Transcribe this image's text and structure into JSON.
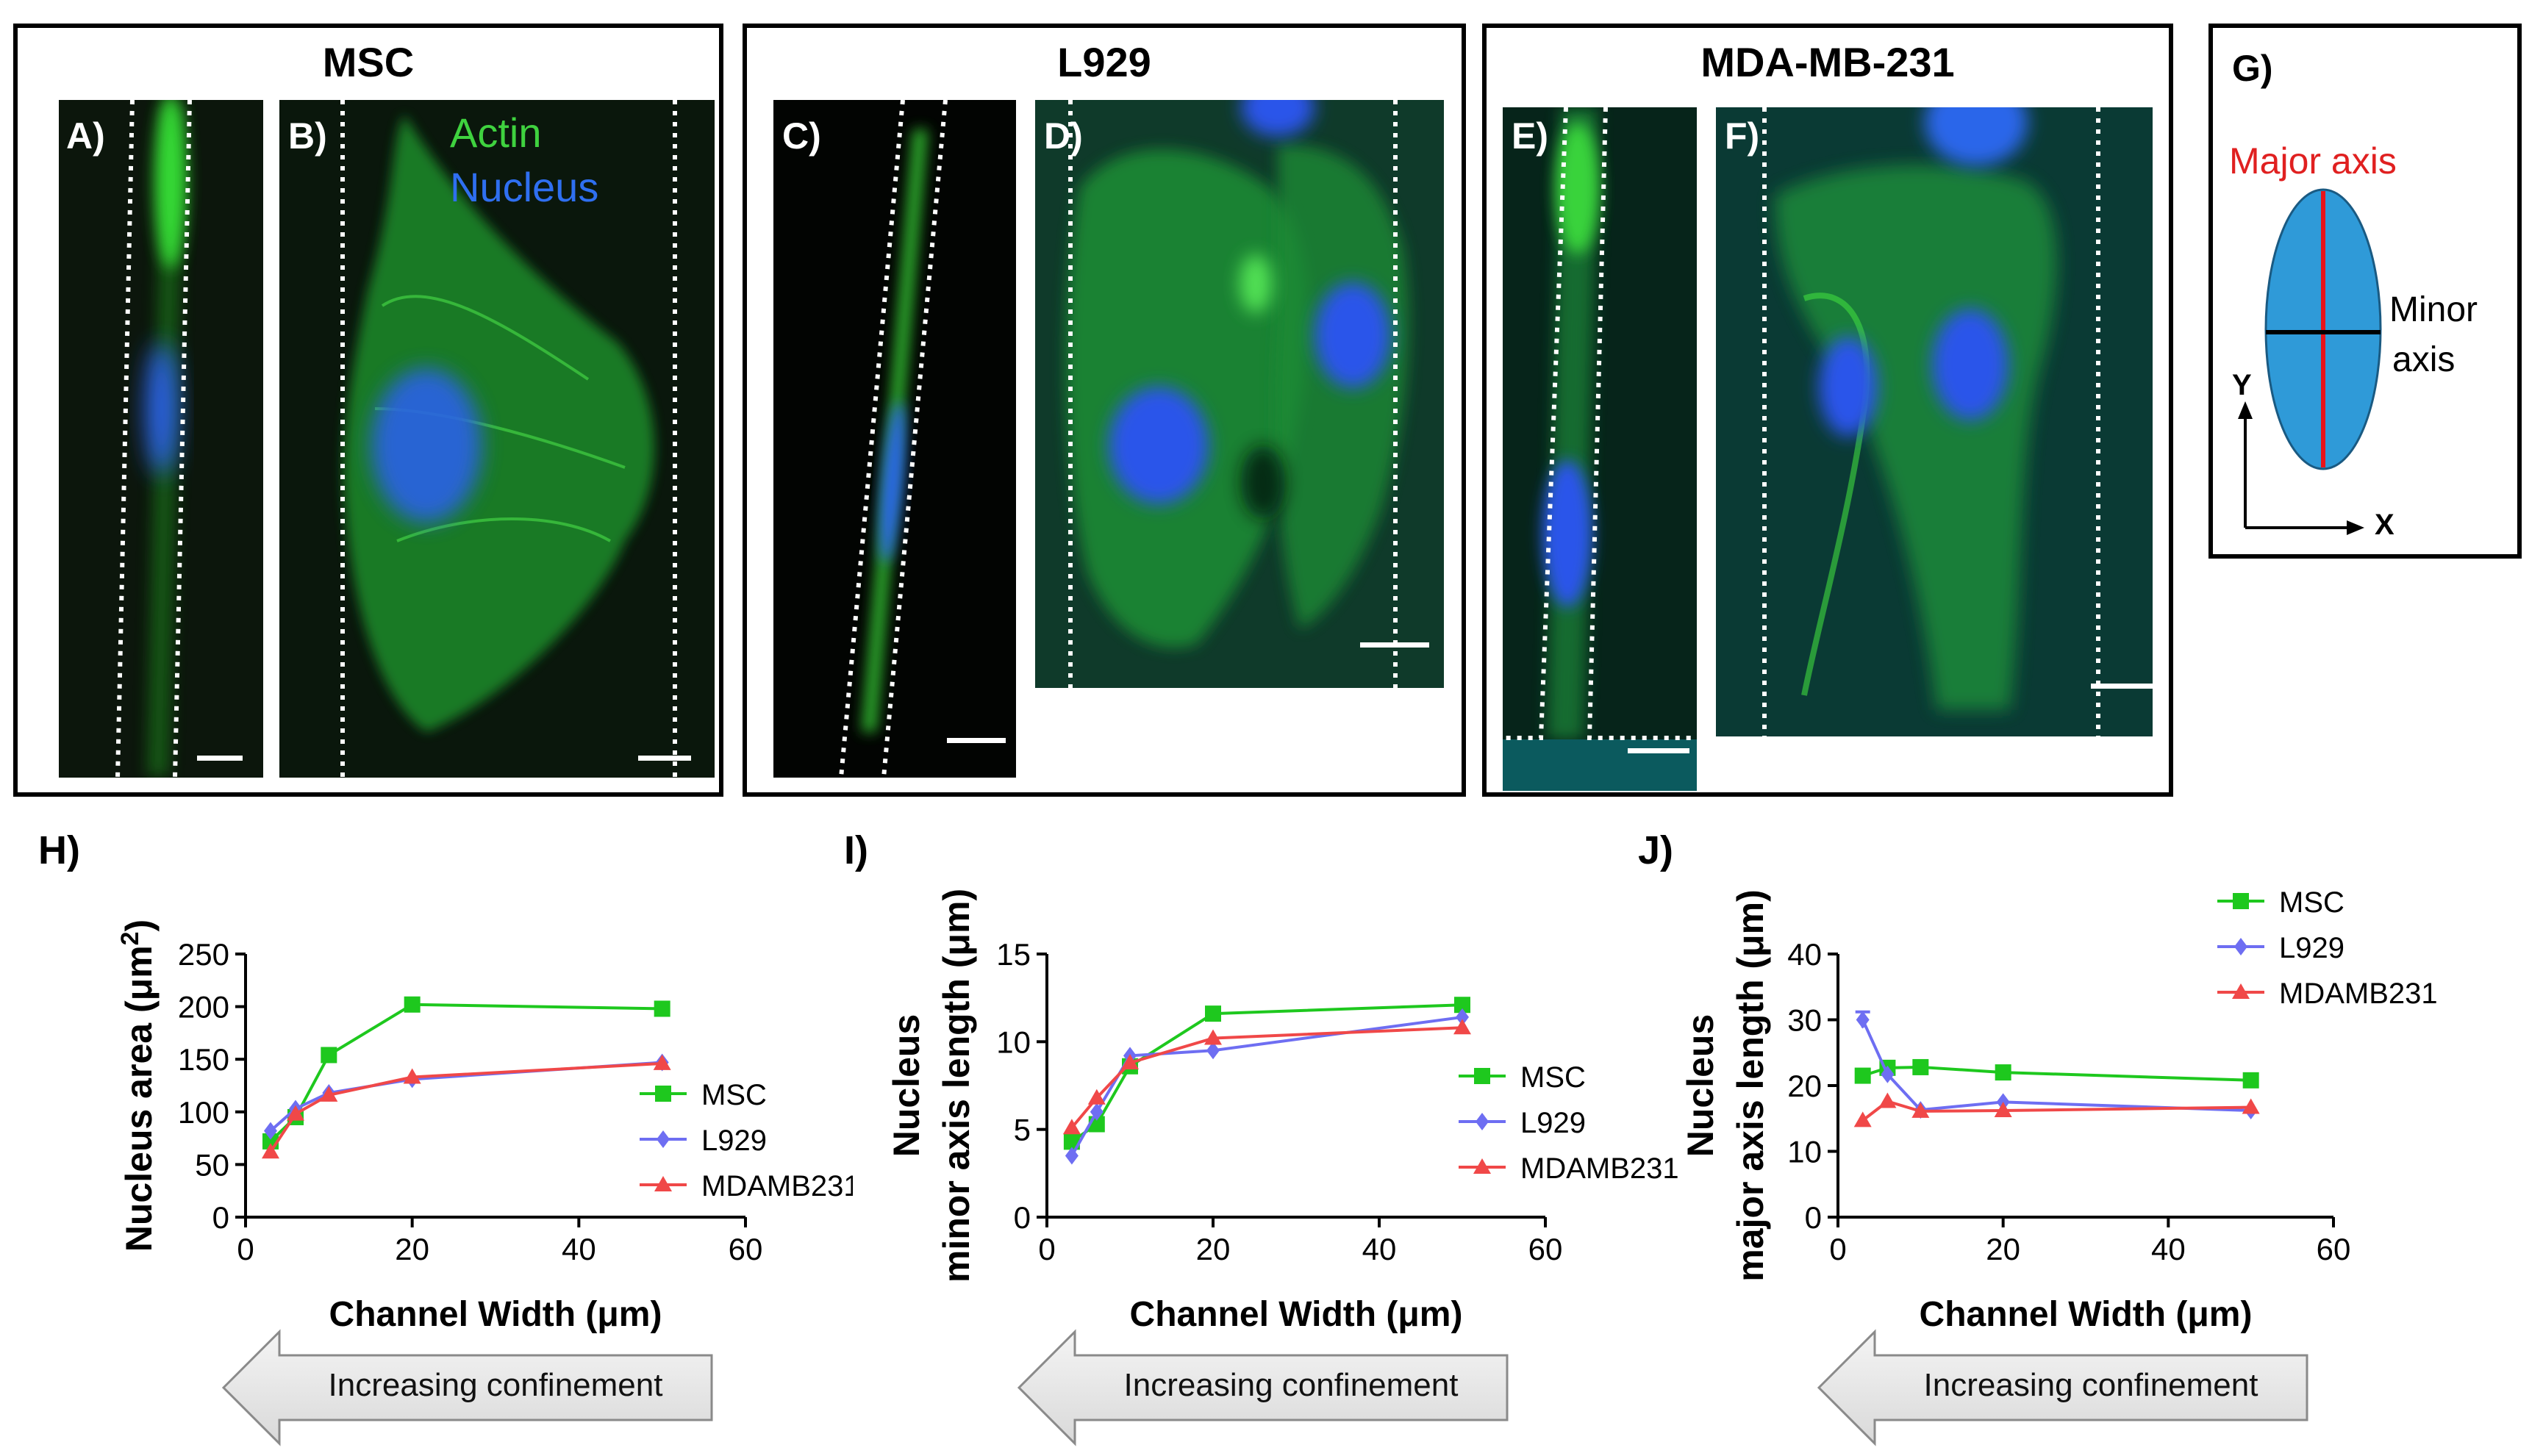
{
  "boxes": {
    "msc": {
      "title": "MSC"
    },
    "l929": {
      "title": "L929"
    },
    "mda": {
      "title": "MDA-MB-231"
    },
    "g": {
      "label": "G)",
      "major": "Major axis",
      "minor_line1": "Minor",
      "minor_line2": "axis",
      "y": "Y",
      "x": "X"
    }
  },
  "panels": {
    "a": "A)",
    "b": "B)",
    "c": "C)",
    "d": "D)",
    "e": "E)",
    "f": "F)",
    "legend_actin": "Actin",
    "legend_nucleus": "Nucleus"
  },
  "colors": {
    "msc": "#1ec81e",
    "l929": "#6e6ef2",
    "mda": "#f04848",
    "actin": "#3fd23f",
    "nucleus": "#2a62e6",
    "ellipse": "#2f9ad8"
  },
  "arrow_label": "Increasing confinement",
  "chart_data": [
    {
      "type": "line",
      "panel_label": "H)",
      "ylabel_line1": "Nucleus area (μm",
      "ylabel_sup": "2",
      "ylabel_close": ")",
      "xlabel": "Channel Width (μm)",
      "xlim": [
        0,
        60
      ],
      "ylim": [
        0,
        250
      ],
      "xticks": [
        0,
        20,
        40,
        60
      ],
      "yticks": [
        0,
        50,
        100,
        150,
        200,
        250
      ],
      "legend_position": "center-right",
      "series": [
        {
          "name": "MSC",
          "marker": "square",
          "x": [
            3,
            6,
            10,
            20,
            50
          ],
          "y": [
            72,
            95,
            154,
            202,
            198
          ]
        },
        {
          "name": "L929",
          "marker": "diamond",
          "x": [
            3,
            6,
            10,
            20,
            50
          ],
          "y": [
            82,
            103,
            118,
            131,
            147
          ]
        },
        {
          "name": "MDAMB231",
          "marker": "triangle",
          "x": [
            3,
            6,
            10,
            20,
            50
          ],
          "y": [
            62,
            98,
            116,
            133,
            146
          ]
        }
      ]
    },
    {
      "type": "line",
      "panel_label": "I)",
      "ylabel_line1": "Nucleus",
      "ylabel_line2": "minor axis length (μm)",
      "xlabel": "Channel Width (μm)",
      "xlim": [
        0,
        60
      ],
      "ylim": [
        0,
        15
      ],
      "xticks": [
        0,
        20,
        40,
        60
      ],
      "yticks": [
        0,
        5,
        10,
        15
      ],
      "legend_position": "center-right",
      "series": [
        {
          "name": "MSC",
          "marker": "square",
          "x": [
            3,
            6,
            10,
            20,
            50
          ],
          "y": [
            4.3,
            5.3,
            8.6,
            11.6,
            12.1
          ]
        },
        {
          "name": "L929",
          "marker": "diamond",
          "x": [
            3,
            6,
            10,
            20,
            50
          ],
          "y": [
            3.5,
            6.0,
            9.2,
            9.5,
            11.4
          ]
        },
        {
          "name": "MDAMB231",
          "marker": "triangle",
          "x": [
            3,
            6,
            10,
            20,
            50
          ],
          "y": [
            5.1,
            6.8,
            8.8,
            10.2,
            10.8
          ]
        }
      ]
    },
    {
      "type": "line",
      "panel_label": "J)",
      "ylabel_line1": "Nucleus",
      "ylabel_line2": "major axis length (μm)",
      "xlabel": "Channel Width (μm)",
      "xlim": [
        0,
        60
      ],
      "ylim": [
        0,
        40
      ],
      "xticks": [
        0,
        20,
        40,
        60
      ],
      "yticks": [
        0,
        10,
        20,
        30,
        40
      ],
      "legend_position": "top-right",
      "series": [
        {
          "name": "MSC",
          "marker": "square",
          "x": [
            3,
            6,
            10,
            20,
            50
          ],
          "y": [
            21.5,
            22.7,
            22.8,
            22.0,
            20.8
          ]
        },
        {
          "name": "L929",
          "marker": "diamond",
          "x": [
            3,
            6,
            10,
            20,
            50
          ],
          "y": [
            30.0,
            21.7,
            16.3,
            17.5,
            16.2
          ],
          "error_x3": 1.2
        },
        {
          "name": "MDAMB231",
          "marker": "triangle",
          "x": [
            3,
            6,
            10,
            20,
            50
          ],
          "y": [
            14.7,
            17.6,
            16.1,
            16.2,
            16.7
          ]
        }
      ]
    }
  ]
}
